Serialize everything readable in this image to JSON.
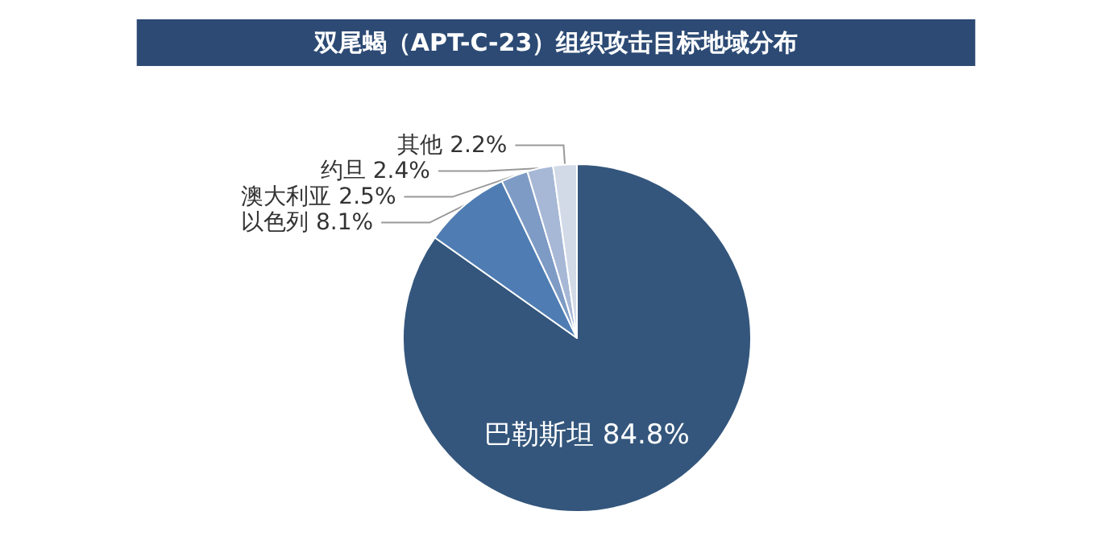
{
  "chart_data": {
    "type": "pie",
    "title": "双尾蝎（APT-C-23）组织攻击目标地域分布",
    "categories": [
      "巴勒斯坦",
      "以色列",
      "澳大利亚",
      "约旦",
      "其他"
    ],
    "values": [
      84.8,
      8.1,
      2.5,
      2.4,
      2.2
    ],
    "colors": [
      "#34567c",
      "#4f7db3",
      "#7e9bc5",
      "#a7b8d6",
      "#d2dae8"
    ],
    "value_labels": [
      "84.8%",
      "8.1%",
      "2.5%",
      "2.4%",
      "2.2%"
    ],
    "legend": false
  }
}
